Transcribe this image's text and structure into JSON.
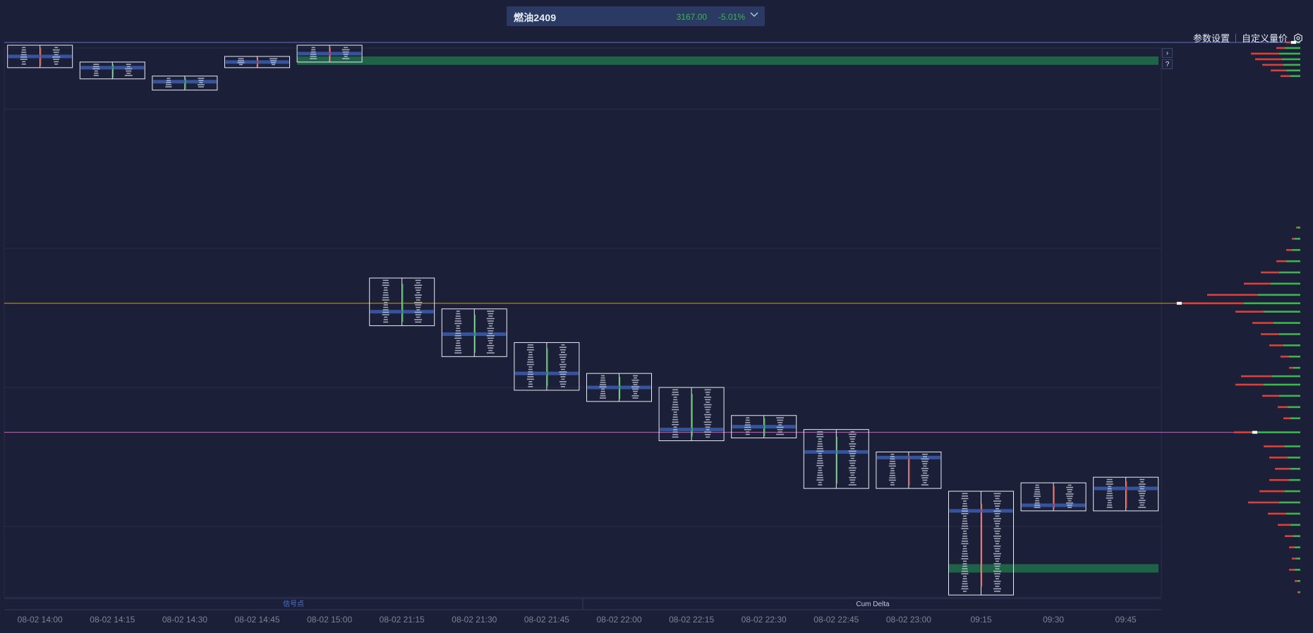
{
  "header": {
    "instrument": "燃油2409",
    "price": "3167.00",
    "change": "-5.01%"
  },
  "toolbar": {
    "params_link": "参数设置",
    "custom_volume_price_link": "自定义量价"
  },
  "side_buttons": {
    "expand": "›",
    "help": "?"
  },
  "panes": {
    "signal_label": "信号点",
    "cum_delta_label": "Cum Delta"
  },
  "colors": {
    "background": "#1b1f37",
    "grid": "#282d48",
    "box": "#e9edf7",
    "buy": "#3fb34f",
    "sell": "#d8423a",
    "poc_band": "#3a5aa8",
    "highlight_zone": "#1f6e4a",
    "orange_line": "#c49a48",
    "pink_line": "#cc62c0",
    "blue_line": "#5b70c9",
    "signal_label": "#4a74df",
    "axis_text": "#7d8398"
  },
  "chart_data": {
    "type": "footprint",
    "x_tick_labels": [
      "08-02 14:00",
      "08-02 14:15",
      "08-02 14:30",
      "08-02 14:45",
      "08-02 15:00",
      "08-02 21:15",
      "08-02 21:30",
      "08-02 21:45",
      "08-02 22:00",
      "08-02 22:15",
      "08-02 22:30",
      "08-02 22:45",
      "08-02 23:00",
      "09:15",
      "09:30",
      "09:45"
    ],
    "bars": [
      {
        "time": "08-02 14:00",
        "high": 1.5,
        "low": -2.5,
        "poc": -0.5,
        "delta": "sell"
      },
      {
        "time": "08-02 14:15",
        "high": -1.5,
        "low": -4.5,
        "poc": -2.5,
        "delta": "buy"
      },
      {
        "time": "08-02 14:30",
        "high": -4,
        "low": -6.5,
        "poc": -5,
        "delta": "buy"
      },
      {
        "time": "08-02 14:45",
        "high": -0.5,
        "low": -2.5,
        "poc": -1.5,
        "delta": "sell"
      },
      {
        "time": "08-02 15:00",
        "high": 1.5,
        "low": -1.5,
        "poc": 0,
        "delta": "sell"
      },
      {
        "time": "08-02 21:15",
        "high": -40,
        "low": -48.5,
        "poc": -46,
        "delta": "buy"
      },
      {
        "time": "08-02 21:30",
        "high": -45.5,
        "low": -54,
        "poc": -50,
        "delta": "buy"
      },
      {
        "time": "08-02 21:45",
        "high": -51.5,
        "low": -60,
        "poc": -57,
        "delta": "buy"
      },
      {
        "time": "08-02 22:00",
        "high": -57,
        "low": -62,
        "poc": -59.5,
        "delta": "buy"
      },
      {
        "time": "08-02 22:15",
        "high": -59.5,
        "low": -69,
        "poc": -67,
        "delta": "buy"
      },
      {
        "time": "08-02 22:30",
        "high": -64.5,
        "low": -68.5,
        "poc": -66.5,
        "delta": "buy"
      },
      {
        "time": "08-02 22:45",
        "high": -67,
        "low": -77.5,
        "poc": -71,
        "delta": "buy"
      },
      {
        "time": "08-02 23:00",
        "high": -71,
        "low": -77.5,
        "poc": -72,
        "delta": "sell"
      },
      {
        "time": "09:15",
        "high": -78,
        "low": -96.5,
        "poc": -81.5,
        "delta": "sell"
      },
      {
        "time": "09:30",
        "high": -76.5,
        "low": -81.5,
        "poc": -80.5,
        "delta": "sell"
      },
      {
        "time": "09:45",
        "high": -75.5,
        "low": -81.5,
        "poc": -77.5,
        "delta": "sell"
      }
    ],
    "horizontal_lines": [
      {
        "name": "upper",
        "value": 2,
        "color": "blue"
      },
      {
        "name": "orange",
        "value": -44.5,
        "color": "orange"
      },
      {
        "name": "pink",
        "value": -67.5,
        "color": "pink"
      }
    ],
    "highlight_zones": [
      {
        "from": -0.5,
        "to": -2,
        "start_bar": 4
      },
      {
        "from": -91,
        "to": -92.5,
        "start_bar": 13
      }
    ],
    "volume_profile": [
      {
        "price": 2,
        "buy": 14,
        "sell": 6
      },
      {
        "price": 1,
        "buy": 22,
        "sell": 12
      },
      {
        "price": 0,
        "buy": 30,
        "sell": 40
      },
      {
        "price": -1,
        "buy": 26,
        "sell": 38
      },
      {
        "price": -2,
        "buy": 24,
        "sell": 30
      },
      {
        "price": -3,
        "buy": 20,
        "sell": 22
      },
      {
        "price": -4,
        "buy": 14,
        "sell": 14
      },
      {
        "price": -31,
        "buy": 4,
        "sell": 2
      },
      {
        "price": -33,
        "buy": 8,
        "sell": 4
      },
      {
        "price": -35,
        "buy": 12,
        "sell": 8
      },
      {
        "price": -37,
        "buy": 20,
        "sell": 14
      },
      {
        "price": -39,
        "buy": 30,
        "sell": 26
      },
      {
        "price": -41,
        "buy": 42,
        "sell": 38
      },
      {
        "price": -43,
        "buy": 60,
        "sell": 72
      },
      {
        "price": -44.5,
        "buy": 80,
        "sell": 96
      },
      {
        "price": -46,
        "buy": 52,
        "sell": 40
      },
      {
        "price": -48,
        "buy": 38,
        "sell": 30
      },
      {
        "price": -50,
        "buy": 30,
        "sell": 26
      },
      {
        "price": -52,
        "buy": 24,
        "sell": 20
      },
      {
        "price": -54,
        "buy": 16,
        "sell": 12
      },
      {
        "price": -56,
        "buy": 10,
        "sell": 6
      },
      {
        "price": -57.5,
        "buy": 40,
        "sell": 44
      },
      {
        "price": -59,
        "buy": 52,
        "sell": 40
      },
      {
        "price": -61,
        "buy": 30,
        "sell": 24
      },
      {
        "price": -63,
        "buy": 18,
        "sell": 14
      },
      {
        "price": -65,
        "buy": 14,
        "sell": 10
      },
      {
        "price": -67.5,
        "buy": 70,
        "sell": 24
      },
      {
        "price": -70,
        "buy": 22,
        "sell": 30
      },
      {
        "price": -72,
        "buy": 18,
        "sell": 26
      },
      {
        "price": -74,
        "buy": 14,
        "sell": 22
      },
      {
        "price": -76,
        "buy": 16,
        "sell": 28
      },
      {
        "price": -78,
        "buy": 22,
        "sell": 36
      },
      {
        "price": -80,
        "buy": 30,
        "sell": 44
      },
      {
        "price": -82,
        "buy": 20,
        "sell": 26
      },
      {
        "price": -84,
        "buy": 14,
        "sell": 18
      },
      {
        "price": -86,
        "buy": 10,
        "sell": 12
      },
      {
        "price": -88,
        "buy": 8,
        "sell": 8
      },
      {
        "price": -90,
        "buy": 6,
        "sell": 6
      },
      {
        "price": -92,
        "buy": 8,
        "sell": 8
      },
      {
        "price": -94,
        "buy": 4,
        "sell": 4
      },
      {
        "price": -96,
        "buy": 2,
        "sell": 2
      }
    ]
  }
}
